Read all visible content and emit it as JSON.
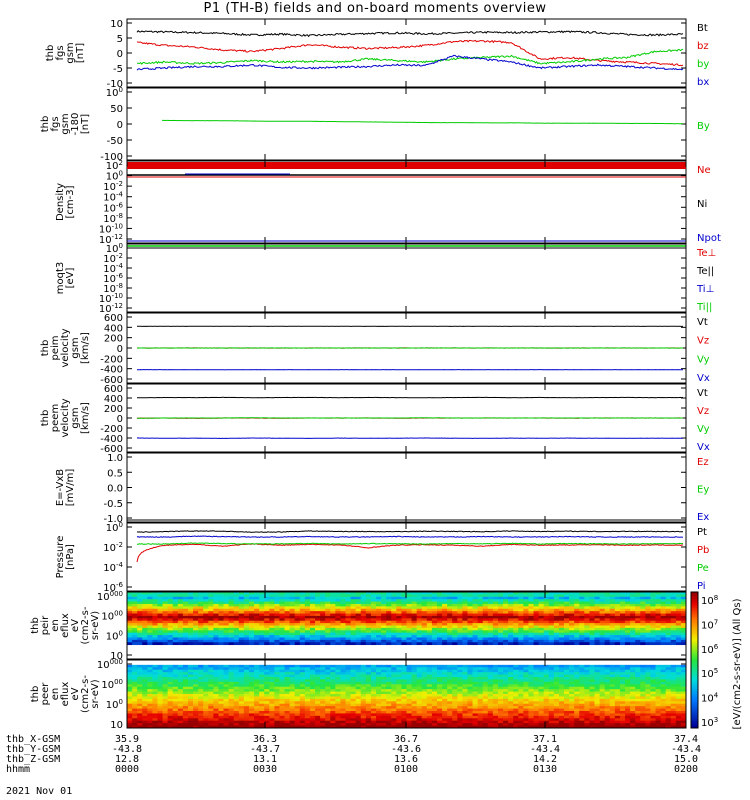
{
  "title": "P1 (TH-B) fields and on-board moments overview",
  "date": "2021 Nov 01",
  "colorbar_label": "[eV/(cm2-s-sr-eV)] (All Qs)",
  "colors": {
    "black": "#000000",
    "red": "#e00000",
    "green": "#00cc00",
    "blue": "#0000cc"
  },
  "chart_data": [
    {
      "type": "line",
      "ylabel": [
        "thb",
        "fgs",
        "gsm",
        "[nT]"
      ],
      "ylim": [
        -10,
        10
      ],
      "yticks": [
        "10",
        "5",
        "0",
        "-5",
        "-10"
      ],
      "series": [
        {
          "name": "Bt",
          "color": "#000000",
          "values": [
            7.2,
            7.0,
            6.8,
            6.5,
            6.0,
            6.3,
            5.8,
            6.2,
            6.5,
            6.7,
            6.4,
            6.6,
            6.9,
            6.8,
            7.0,
            7.1,
            6.8,
            6.2,
            6.0,
            6.3
          ]
        },
        {
          "name": "bz",
          "color": "#e00000",
          "values": [
            3.5,
            2.5,
            2.0,
            1.0,
            0.5,
            1.5,
            2.8,
            2.0,
            1.5,
            1.8,
            2.5,
            3.8,
            4.0,
            3.5,
            -2.0,
            -1.5,
            -2.5,
            -3.0,
            -3.5,
            -4.0
          ]
        },
        {
          "name": "by",
          "color": "#00cc00",
          "values": [
            -3.5,
            -3.0,
            -3.5,
            -3.2,
            -2.5,
            -3.0,
            -2.8,
            -3.0,
            -2.0,
            -2.5,
            -3.0,
            -2.0,
            -1.5,
            -1.0,
            -3.5,
            -3.0,
            -2.0,
            -1.5,
            0.5,
            1.0
          ]
        },
        {
          "name": "bx",
          "color": "#0000cc",
          "values": [
            -5.5,
            -5.0,
            -4.5,
            -4.5,
            -4.0,
            -4.8,
            -5.0,
            -4.8,
            -4.5,
            -4.0,
            -4.2,
            -1.0,
            -2.0,
            -3.0,
            -5.0,
            -4.5,
            -4.0,
            -4.5,
            -5.0,
            -5.5
          ]
        }
      ]
    },
    {
      "type": "line",
      "ylabel": [
        "thb",
        "fgs",
        "gsm",
        "-180",
        "[nT]"
      ],
      "ylim": [
        -130,
        100
      ],
      "yticks": [
        "100",
        "50",
        "0",
        "-50",
        "-100"
      ],
      "series": [
        {
          "name": "By",
          "color": "#00cc00",
          "values": [
            -2,
            -3,
            -3,
            -4,
            -5,
            -5,
            -6,
            -7,
            -8,
            -9,
            -10,
            -10,
            -11,
            -11,
            -12,
            -12,
            -12,
            -13,
            -13,
            -14
          ]
        }
      ]
    },
    {
      "type": "line",
      "ylabel": [
        "Density",
        "[cm-3]"
      ],
      "yticks": [
        "102",
        "100",
        "10-2",
        "10-4",
        "10-6",
        "10-8",
        "10-10",
        "10-12"
      ],
      "series": [
        {
          "name": "Ne",
          "color": "#e00000"
        },
        {
          "name": "Ni",
          "color": "#000000"
        },
        {
          "name": "Npot",
          "color": "#0000cc"
        }
      ]
    },
    {
      "type": "line",
      "ylabel": [
        "moqt3",
        "[eV]"
      ],
      "yticks": [
        "100",
        "10-2",
        "10-4",
        "10-6",
        "10-8",
        "10-10",
        "10-12"
      ],
      "series": [
        {
          "name": "Te⊥",
          "color": "#e00000"
        },
        {
          "name": "Te||",
          "color": "#000000"
        },
        {
          "name": "Ti⊥",
          "color": "#0000cc"
        },
        {
          "name": "Ti||",
          "color": "#00cc00"
        }
      ]
    },
    {
      "type": "line",
      "ylabel": [
        "thb",
        "peim",
        "velocity",
        "gsm",
        "[km/s]"
      ],
      "ylim": [
        -600,
        600
      ],
      "yticks": [
        "600",
        "400",
        "200",
        "0",
        "-200",
        "-400",
        "-600"
      ],
      "series": [
        {
          "name": "Vt",
          "color": "#000000",
          "values": [
            420,
            420,
            420,
            421,
            420,
            420,
            421,
            420,
            420,
            420,
            420,
            420,
            421,
            420,
            420,
            420,
            420,
            420,
            420,
            420
          ]
        },
        {
          "name": "Vz",
          "color": "#e00000",
          "values": [
            0,
            0,
            1,
            0,
            0,
            -1,
            0,
            0,
            0,
            0,
            1,
            0,
            0,
            0,
            0,
            0,
            0,
            0,
            0,
            0
          ]
        },
        {
          "name": "Vy",
          "color": "#00cc00",
          "values": [
            0,
            0,
            0,
            0,
            0,
            0,
            0,
            0,
            0,
            0,
            0,
            0,
            0,
            0,
            0,
            0,
            0,
            0,
            0,
            0
          ]
        },
        {
          "name": "Vx",
          "color": "#0000cc",
          "values": [
            -420,
            -420,
            -420,
            -421,
            -420,
            -420,
            -421,
            -420,
            -420,
            -420,
            -420,
            -420,
            -421,
            -420,
            -420,
            -420,
            -420,
            -420,
            -420,
            -420
          ]
        }
      ]
    },
    {
      "type": "line",
      "ylabel": [
        "thb",
        "peem",
        "velocity",
        "gsm",
        "[km/s]"
      ],
      "ylim": [
        -600,
        600
      ],
      "yticks": [
        "600",
        "400",
        "200",
        "0",
        "-200",
        "-400",
        "-600"
      ],
      "series": [
        {
          "name": "Vt",
          "color": "#000000",
          "values": [
            405,
            410,
            408,
            412,
            406,
            409,
            411,
            407,
            410,
            408,
            405,
            409,
            412,
            407,
            410,
            406,
            409,
            411,
            408,
            410
          ]
        },
        {
          "name": "Vz",
          "color": "#e00000",
          "values": [
            -5,
            0,
            -8,
            0,
            0,
            -5,
            0,
            0,
            0,
            -4,
            0,
            0,
            0,
            0,
            0,
            -3,
            0,
            0,
            0,
            0
          ]
        },
        {
          "name": "Vy",
          "color": "#00cc00",
          "values": [
            -5,
            0,
            0,
            0,
            5,
            0,
            0,
            0,
            0,
            0,
            3,
            0,
            0,
            0,
            0,
            0,
            0,
            0,
            0,
            0
          ]
        },
        {
          "name": "Vx",
          "color": "#0000cc",
          "values": [
            -400,
            -405,
            -402,
            -408,
            -400,
            -404,
            -406,
            -402,
            -405,
            -403,
            -400,
            -404,
            -407,
            -402,
            -405,
            -401,
            -404,
            -406,
            -403,
            -405
          ]
        }
      ]
    },
    {
      "type": "line",
      "ylabel": [
        "E=-VxB",
        "[mV/m]"
      ],
      "ylim": [
        -1,
        1
      ],
      "yticks": [
        "1.0",
        "0.5",
        "0.0",
        "-0.5",
        "-1.0"
      ],
      "series": [
        {
          "name": "Ez",
          "color": "#e00000"
        },
        {
          "name": "Ey",
          "color": "#00cc00"
        },
        {
          "name": "Ex",
          "color": "#0000cc"
        }
      ]
    },
    {
      "type": "line",
      "ylabel": [
        "Pressure",
        "[nPa]"
      ],
      "ylim_log10": [
        -6,
        0
      ],
      "yticks": [
        "100",
        "10-2",
        "10-4",
        "10-6"
      ],
      "series": [
        {
          "name": "Pt",
          "color": "#000000",
          "values": [
            0.3,
            0.35,
            0.4,
            0.38,
            0.3,
            0.32,
            0.4,
            0.36,
            0.35,
            0.34,
            0.38,
            0.36,
            0.34,
            0.4,
            0.36,
            0.38,
            0.35,
            0.37,
            0.36,
            0.35
          ]
        },
        {
          "name": "Pb",
          "color": "#e00000",
          "values": [
            0.0003,
            0.015,
            0.018,
            0.012,
            0.02,
            0.015,
            0.018,
            0.016,
            0.008,
            0.015,
            0.017,
            0.015,
            0.012,
            0.018,
            0.015,
            0.016,
            0.017,
            0.015,
            0.016,
            0.015
          ]
        },
        {
          "name": "Pe",
          "color": "#00cc00",
          "values": [
            0.02,
            0.02,
            0.025,
            0.022,
            0.02,
            0.021,
            0.023,
            0.02,
            0.022,
            0.021,
            0.02,
            0.022,
            0.021,
            0.023,
            0.02,
            0.022,
            0.021,
            0.02,
            0.021,
            0.022
          ]
        },
        {
          "name": "Pi",
          "color": "#0000cc",
          "values": [
            0.1,
            0.1,
            0.12,
            0.11,
            0.1,
            0.1,
            0.11,
            0.1,
            0.1,
            0.11,
            0.1,
            0.1,
            0.11,
            0.1,
            0.1,
            0.11,
            0.1,
            0.1,
            0.1,
            0.1
          ]
        }
      ]
    },
    {
      "type": "heatmap",
      "ylabel": [
        "thb",
        "peir",
        "en",
        "eflux",
        "eV",
        "(cm2-s-",
        "sr-eV)"
      ],
      "yticks": [
        "10000",
        "1000",
        "100",
        "10"
      ]
    },
    {
      "type": "heatmap",
      "ylabel": [
        "thb",
        "peer",
        "en",
        "eflux",
        "eV",
        "(cm2-s-",
        "sr-eV)"
      ],
      "yticks": [
        "10000",
        "1000",
        "100",
        "10"
      ]
    }
  ],
  "colorbar_ticks": [
    "108",
    "107",
    "106",
    "105",
    "104",
    "103"
  ],
  "ephemeris": {
    "rows": [
      {
        "label": "thb_X-GSM",
        "values": [
          "35.9",
          "36.3",
          "36.7",
          "37.1",
          "37.4"
        ]
      },
      {
        "label": "thb_Y-GSM",
        "values": [
          "-43.8",
          "-43.7",
          "-43.6",
          "-43.4",
          "-43.4"
        ]
      },
      {
        "label": "thb_Z-GSM",
        "values": [
          "12.8",
          "13.1",
          "13.6",
          "14.2",
          "15.0"
        ]
      },
      {
        "label": "hhmm",
        "values": [
          "0000",
          "0030",
          "0100",
          "0130",
          "0200"
        ]
      }
    ]
  }
}
